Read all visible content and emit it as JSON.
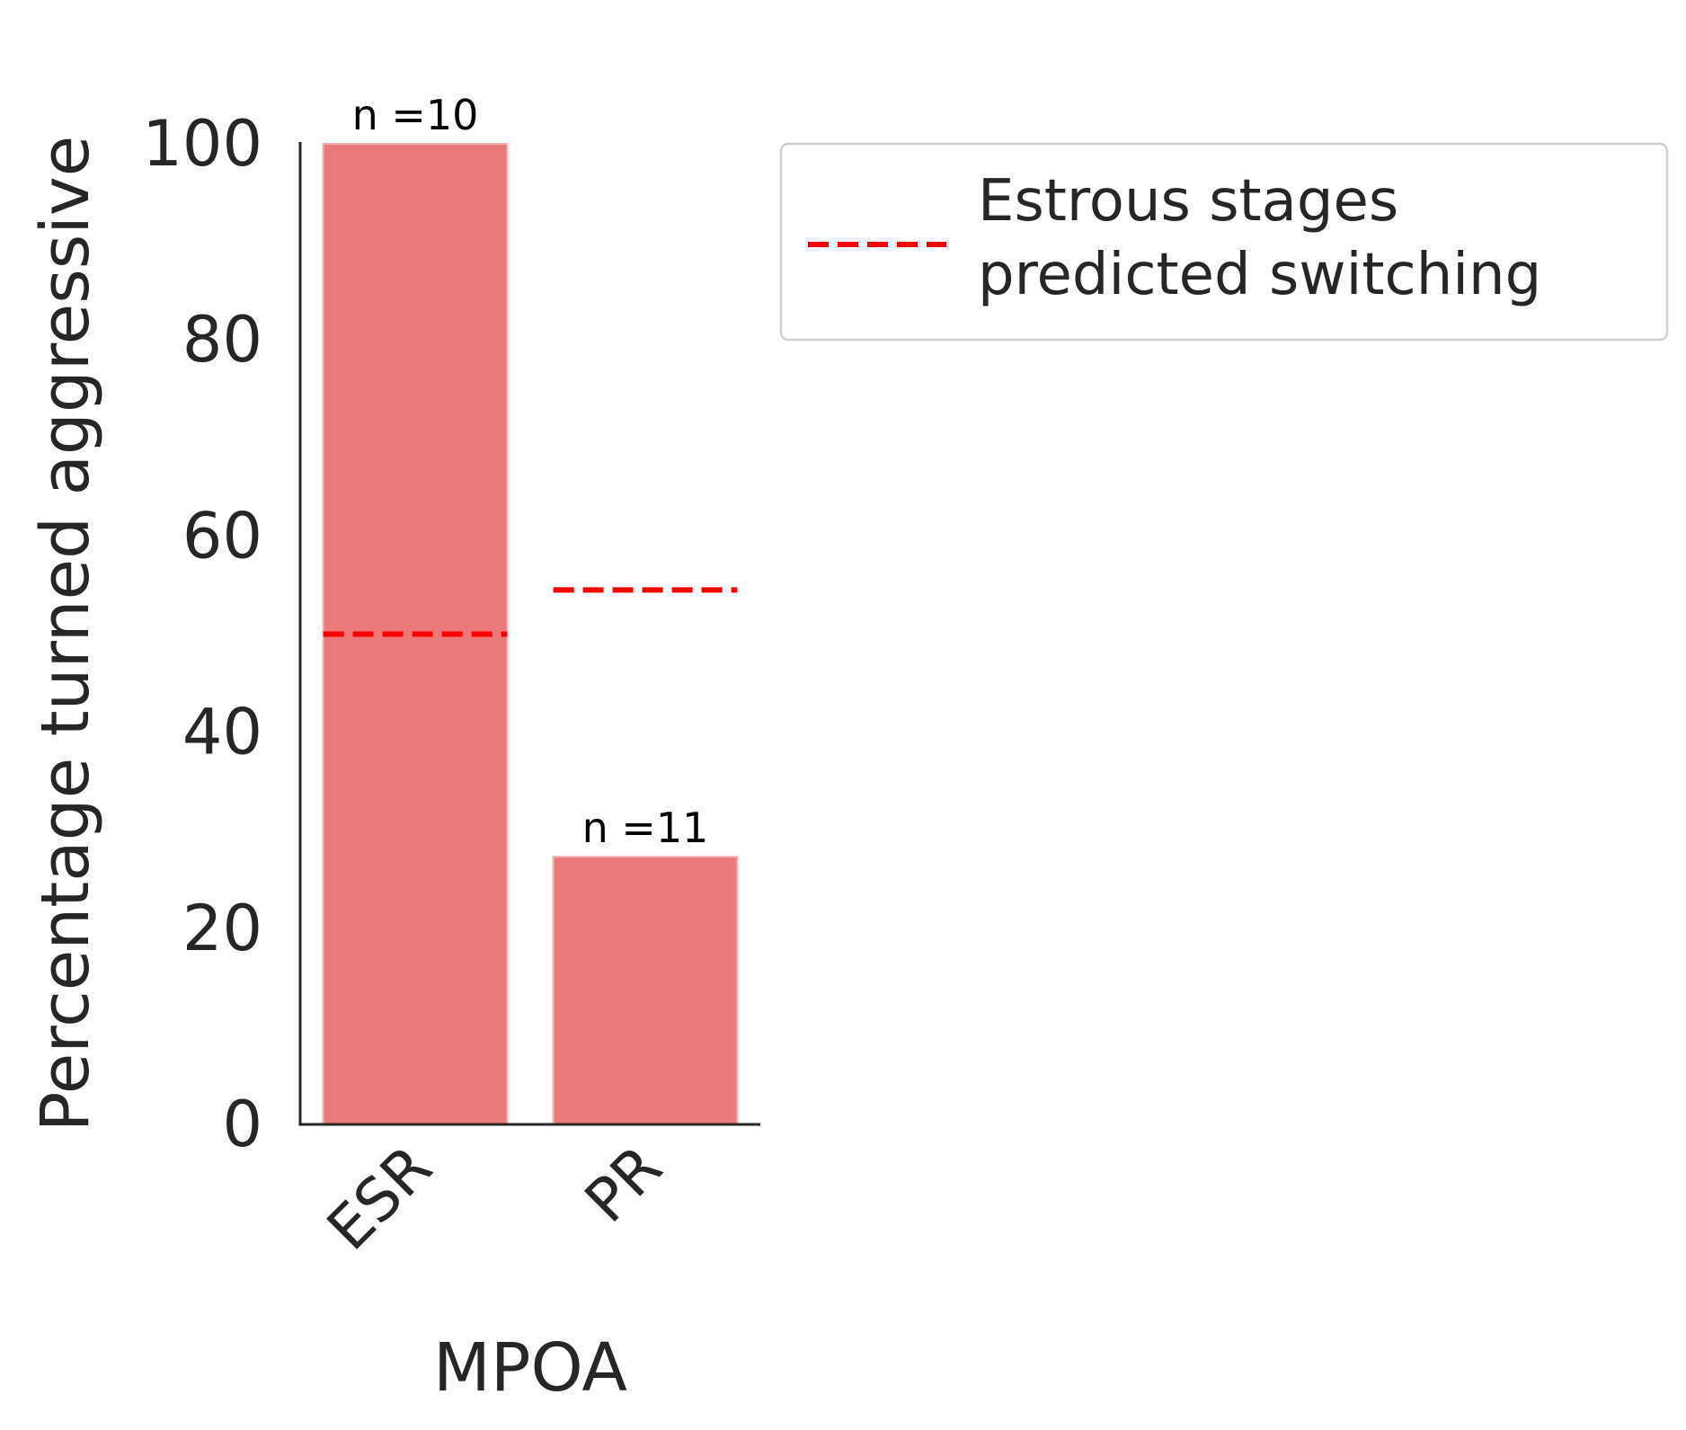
{
  "chart_data": {
    "type": "bar",
    "categories": [
      "ESR",
      "PR"
    ],
    "values": [
      100,
      27.3
    ],
    "bar_color": "#eb7979",
    "bar_labels": [
      "n =10",
      "n =11"
    ],
    "predicted": {
      "name": "Estrous stages predicted switching",
      "values": [
        50,
        54.5
      ],
      "color": "#ff0000"
    },
    "xlabel": "MPOA",
    "ylabel": "Percentage turned aggressive",
    "ylim": [
      0,
      100
    ],
    "yticks": [
      "0",
      "20",
      "40",
      "60",
      "80",
      "100"
    ],
    "legend": {
      "line1": "Estrous stages",
      "line2": "predicted switching",
      "placement": "outside-right-top"
    },
    "grid": false
  }
}
